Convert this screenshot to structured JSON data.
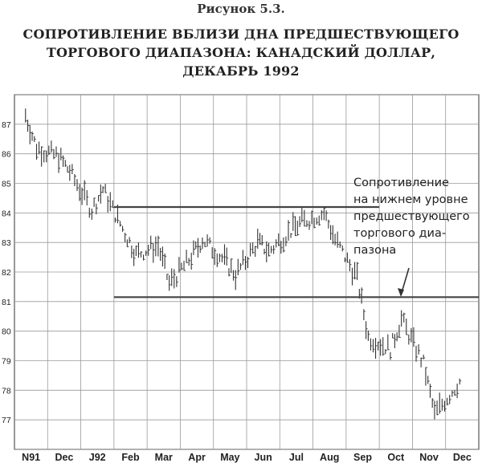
{
  "figure_label": "Рисунок 5.3.",
  "title_lines": [
    "СОПРОТИВЛЕНИЕ ВБЛИЗИ ДНА ПРЕДШЕСТВУЮЩЕГО",
    "ТОРГОВОГО ДИАПАЗОНА: КАНАДСКИЙ ДОЛЛАР,",
    "ДЕКАБРЬ 1992"
  ],
  "annotation_lines": [
    "Сопротивление",
    "на нижнем уровне",
    "предшествующего",
    "торгового диа-",
    "пазона"
  ],
  "chart_data": {
    "type": "bar",
    "subtype": "ohlc-daily",
    "title": "СОПРОТИВЛЕНИЕ ВБЛИЗИ ДНА ПРЕДШЕСТВУЮЩЕГО ТОРГОВОГО ДИАПАЗОНА: КАНАДСКИЙ ДОЛЛАР, ДЕКАБРЬ 1992",
    "xlabel": "",
    "ylabel": "",
    "x_tick_labels": [
      "N91",
      "Dec",
      "J92",
      "Feb",
      "Mar",
      "Apr",
      "May",
      "Jun",
      "Jul",
      "Aug",
      "Sep",
      "Oct",
      "Nov",
      "Dec"
    ],
    "y_ticks": [
      77,
      78,
      79,
      80,
      81,
      82,
      83,
      84,
      85,
      86,
      87
    ],
    "ylim": [
      76.0,
      88.0
    ],
    "grid": true,
    "horizontal_lines": [
      {
        "y": 84.2,
        "from": "Feb",
        "to": "Sep"
      },
      {
        "y": 81.15,
        "from": "Feb",
        "to": "Dec"
      }
    ],
    "approx_price_path": [
      {
        "month": "N91",
        "value": 87.3
      },
      {
        "month": "N91",
        "value": 86.2
      },
      {
        "month": "Dec",
        "value": 85.9
      },
      {
        "month": "Dec",
        "value": 85.4
      },
      {
        "month": "J92",
        "value": 84.1
      },
      {
        "month": "J92",
        "value": 84.8
      },
      {
        "month": "Feb",
        "value": 83.3
      },
      {
        "month": "Feb",
        "value": 82.6
      },
      {
        "month": "Mar",
        "value": 82.9
      },
      {
        "month": "Mar",
        "value": 81.6
      },
      {
        "month": "Apr",
        "value": 82.5
      },
      {
        "month": "Apr",
        "value": 83.1
      },
      {
        "month": "May",
        "value": 82.4
      },
      {
        "month": "May",
        "value": 81.9
      },
      {
        "month": "Jun",
        "value": 83.0
      },
      {
        "month": "Jun",
        "value": 82.7
      },
      {
        "month": "Jul",
        "value": 83.4
      },
      {
        "month": "Jul",
        "value": 83.7
      },
      {
        "month": "Aug",
        "value": 84.0
      },
      {
        "month": "Aug",
        "value": 83.1
      },
      {
        "month": "Sep",
        "value": 81.8
      },
      {
        "month": "Sep",
        "value": 79.8
      },
      {
        "month": "Oct",
        "value": 79.4
      },
      {
        "month": "Oct",
        "value": 80.4
      },
      {
        "month": "Nov",
        "value": 78.9
      },
      {
        "month": "Nov",
        "value": 77.2
      },
      {
        "month": "Dec",
        "value": 78.4
      }
    ]
  }
}
